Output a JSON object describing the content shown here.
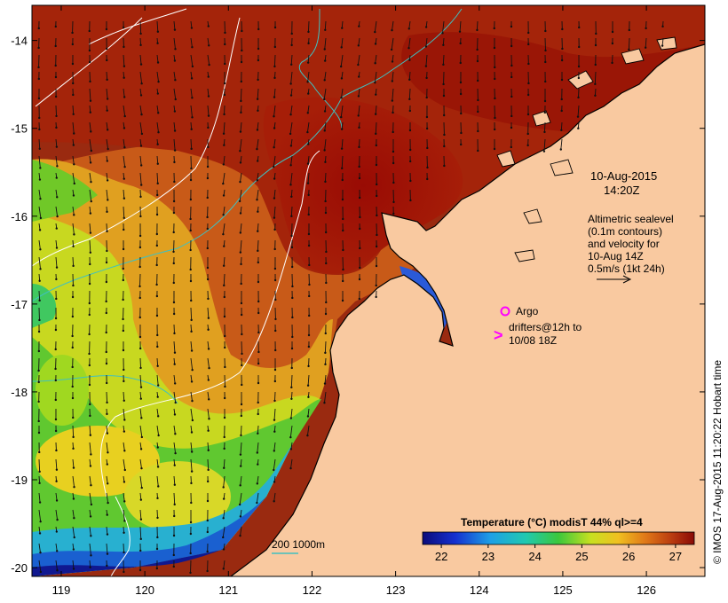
{
  "map": {
    "x_ticks": [
      "119",
      "120",
      "121",
      "122",
      "123",
      "124",
      "125",
      "126"
    ],
    "y_ticks": [
      "-14",
      "-15",
      "-16",
      "-17",
      "-18",
      "-19",
      "-20"
    ],
    "x_range": [
      118.65,
      126.7
    ],
    "y_range": [
      -20.1,
      -13.6
    ],
    "land_color": "#f9c9a0",
    "coast_color": "#000000"
  },
  "annotations": {
    "date_line1": "10-Aug-2015",
    "date_line2": "14:20Z",
    "alt_lines": [
      "Altimetric sealevel",
      "(0.1m contours)",
      "and velocity for",
      "10-Aug 14Z",
      "0.5m/s (1kt 24h)"
    ],
    "argo_label": "Argo",
    "drifter_marker": ">",
    "drifter_line1": "drifters@12h to",
    "drifter_line2": "10/08 18Z",
    "bathy_label": "200  1000m"
  },
  "colorbar": {
    "title": "Temperature (°C) modisT 44% ql>=4",
    "ticks": [
      "22",
      "23",
      "24",
      "25",
      "26",
      "27"
    ],
    "range": [
      21.6,
      27.4
    ]
  },
  "credit": "© IMOS 17-Aug-2015 11:20:22 Hobart time",
  "colors": {
    "argo": "#ff00ff",
    "contour": "#ffffff",
    "bathy": "#40c0c0"
  }
}
